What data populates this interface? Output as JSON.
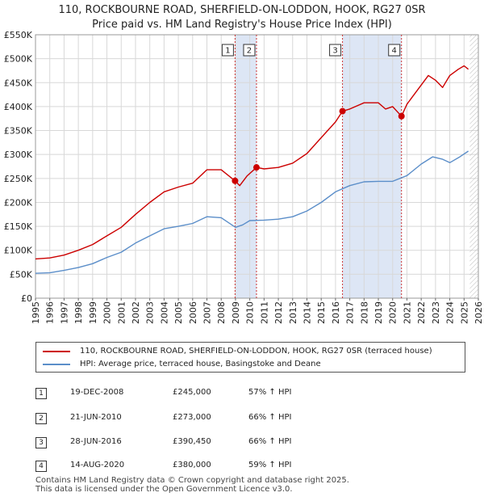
{
  "title_line1": "110, ROCKBOURNE ROAD, SHERFIELD-ON-LODDON, HOOK, RG27 0SR",
  "title_line2": "Price paid vs. HM Land Registry's House Price Index (HPI)",
  "colors": {
    "property": "#cc0000",
    "hpi": "#5b8ec9",
    "band": "#dde6f5",
    "grid": "#d8d8d8",
    "marker_line": "#cc3333"
  },
  "chart_data": {
    "type": "line",
    "y_ticks": [
      {
        "value": 0,
        "label": "£0"
      },
      {
        "value": 50000,
        "label": "£50K"
      },
      {
        "value": 100000,
        "label": "£100K"
      },
      {
        "value": 150000,
        "label": "£150K"
      },
      {
        "value": 200000,
        "label": "£200K"
      },
      {
        "value": 250000,
        "label": "£250K"
      },
      {
        "value": 300000,
        "label": "£300K"
      },
      {
        "value": 350000,
        "label": "£350K"
      },
      {
        "value": 400000,
        "label": "£400K"
      },
      {
        "value": 450000,
        "label": "£450K"
      },
      {
        "value": 500000,
        "label": "£500K"
      },
      {
        "value": 550000,
        "label": "£550K"
      }
    ],
    "ylim": [
      0,
      550000
    ],
    "xlim": [
      1995,
      2026
    ],
    "x_ticks": [
      "1995",
      "1996",
      "1997",
      "1998",
      "1999",
      "2000",
      "2001",
      "2002",
      "2003",
      "2004",
      "2005",
      "2006",
      "2007",
      "2008",
      "2009",
      "2010",
      "2011",
      "2012",
      "2013",
      "2014",
      "2015",
      "2016",
      "2017",
      "2018",
      "2019",
      "2020",
      "2021",
      "2022",
      "2023",
      "2024",
      "2025",
      "2026"
    ],
    "shaded_ranges": [
      [
        2008.97,
        2010.47
      ],
      [
        2016.49,
        2020.62
      ]
    ],
    "future_hatch_from": 2025.4,
    "series": [
      {
        "name": "110, ROCKBOURNE ROAD, SHERFIELD-ON-LODDON, HOOK, RG27 0SR (terraced house)",
        "points": [
          [
            1995,
            82000
          ],
          [
            1996,
            84000
          ],
          [
            1997,
            90000
          ],
          [
            1998,
            100000
          ],
          [
            1999,
            112000
          ],
          [
            2000,
            130000
          ],
          [
            2001,
            148000
          ],
          [
            2002,
            175000
          ],
          [
            2003,
            200000
          ],
          [
            2004,
            222000
          ],
          [
            2005,
            232000
          ],
          [
            2006,
            240000
          ],
          [
            2007,
            268000
          ],
          [
            2008,
            268000
          ],
          [
            2008.97,
            245000
          ],
          [
            2009.3,
            235000
          ],
          [
            2009.8,
            255000
          ],
          [
            2010.47,
            273000
          ],
          [
            2011,
            270000
          ],
          [
            2012,
            273000
          ],
          [
            2013,
            282000
          ],
          [
            2014,
            302000
          ],
          [
            2015,
            335000
          ],
          [
            2016,
            368000
          ],
          [
            2016.49,
            390450
          ],
          [
            2017,
            395000
          ],
          [
            2018,
            408000
          ],
          [
            2019,
            408000
          ],
          [
            2019.5,
            395000
          ],
          [
            2020,
            400000
          ],
          [
            2020.62,
            380000
          ],
          [
            2021,
            405000
          ],
          [
            2022,
            445000
          ],
          [
            2022.5,
            465000
          ],
          [
            2023,
            455000
          ],
          [
            2023.5,
            440000
          ],
          [
            2024,
            465000
          ],
          [
            2024.6,
            478000
          ],
          [
            2025,
            485000
          ],
          [
            2025.3,
            478000
          ]
        ]
      },
      {
        "name": "HPI: Average price, terraced house, Basingstoke and Deane",
        "points": [
          [
            1995,
            52000
          ],
          [
            1996,
            53000
          ],
          [
            1997,
            58000
          ],
          [
            1998,
            64000
          ],
          [
            1999,
            72000
          ],
          [
            2000,
            85000
          ],
          [
            2001,
            96000
          ],
          [
            2002,
            115000
          ],
          [
            2003,
            130000
          ],
          [
            2004,
            145000
          ],
          [
            2005,
            150000
          ],
          [
            2006,
            156000
          ],
          [
            2007,
            170000
          ],
          [
            2008,
            168000
          ],
          [
            2009,
            148000
          ],
          [
            2009.5,
            153000
          ],
          [
            2010,
            162000
          ],
          [
            2011,
            163000
          ],
          [
            2012,
            165000
          ],
          [
            2013,
            170000
          ],
          [
            2014,
            182000
          ],
          [
            2015,
            200000
          ],
          [
            2016,
            222000
          ],
          [
            2017,
            235000
          ],
          [
            2018,
            243000
          ],
          [
            2019,
            244000
          ],
          [
            2020,
            244000
          ],
          [
            2021,
            256000
          ],
          [
            2022,
            280000
          ],
          [
            2022.8,
            295000
          ],
          [
            2023.5,
            290000
          ],
          [
            2024,
            283000
          ],
          [
            2024.7,
            295000
          ],
          [
            2025.3,
            307000
          ]
        ]
      }
    ],
    "sales": [
      {
        "num": "1",
        "x": 2008.97,
        "price": 245000
      },
      {
        "num": "2",
        "x": 2010.47,
        "price": 273000
      },
      {
        "num": "3",
        "x": 2016.49,
        "price": 390450
      },
      {
        "num": "4",
        "x": 2020.62,
        "price": 380000
      }
    ]
  },
  "legend": {
    "property_label": "110, ROCKBOURNE ROAD, SHERFIELD-ON-LODDON, HOOK, RG27 0SR (terraced house)",
    "hpi_label": "HPI: Average price, terraced house, Basingstoke and Deane"
  },
  "sales_table": [
    {
      "num": "1",
      "date": "19-DEC-2008",
      "price": "£245,000",
      "hpi": "57% ↑ HPI"
    },
    {
      "num": "2",
      "date": "21-JUN-2010",
      "price": "£273,000",
      "hpi": "66% ↑ HPI"
    },
    {
      "num": "3",
      "date": "28-JUN-2016",
      "price": "£390,450",
      "hpi": "66% ↑ HPI"
    },
    {
      "num": "4",
      "date": "14-AUG-2020",
      "price": "£380,000",
      "hpi": "59% ↑ HPI"
    }
  ],
  "footer_line1": "Contains HM Land Registry data © Crown copyright and database right 2025.",
  "footer_line2": "This data is licensed under the Open Government Licence v3.0."
}
